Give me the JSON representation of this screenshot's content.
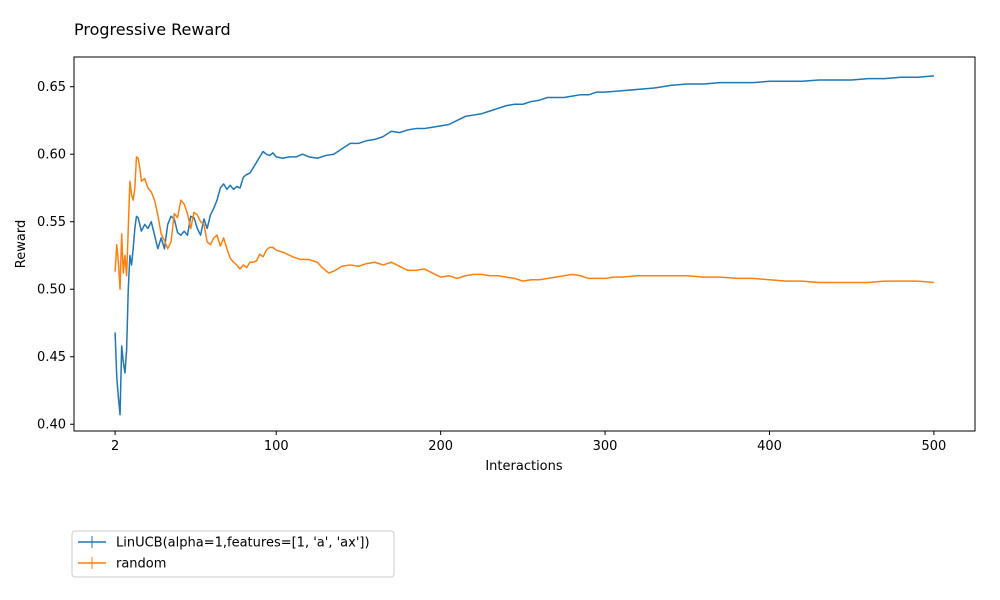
{
  "chart_data": {
    "type": "line",
    "title": "Progressive Reward",
    "xlabel": "Interactions",
    "ylabel": "Reward",
    "xlim": [
      -23,
      525
    ],
    "ylim": [
      0.395,
      0.672
    ],
    "xticks": [
      2,
      100,
      200,
      300,
      400,
      500
    ],
    "yticks": [
      0.4,
      0.45,
      0.5,
      0.55,
      0.6,
      0.65
    ],
    "ytick_labels": [
      "0.40",
      "0.45",
      "0.50",
      "0.55",
      "0.60",
      "0.65"
    ],
    "grid": false,
    "legend_position": "below-left",
    "series": [
      {
        "name": "LinUCB(alpha=1,features=[1, 'a', 'ax'])",
        "color": "#1f77b4",
        "points": [
          [
            2,
            0.468
          ],
          [
            3,
            0.435
          ],
          [
            4,
            0.42
          ],
          [
            5,
            0.407
          ],
          [
            6,
            0.458
          ],
          [
            7,
            0.446
          ],
          [
            8,
            0.438
          ],
          [
            9,
            0.455
          ],
          [
            10,
            0.5
          ],
          [
            11,
            0.525
          ],
          [
            12,
            0.518
          ],
          [
            13,
            0.53
          ],
          [
            14,
            0.545
          ],
          [
            15,
            0.554
          ],
          [
            16,
            0.553
          ],
          [
            18,
            0.543
          ],
          [
            20,
            0.548
          ],
          [
            22,
            0.545
          ],
          [
            24,
            0.55
          ],
          [
            26,
            0.54
          ],
          [
            28,
            0.53
          ],
          [
            30,
            0.538
          ],
          [
            32,
            0.53
          ],
          [
            34,
            0.548
          ],
          [
            36,
            0.554
          ],
          [
            38,
            0.552
          ],
          [
            40,
            0.542
          ],
          [
            42,
            0.54
          ],
          [
            44,
            0.543
          ],
          [
            46,
            0.54
          ],
          [
            48,
            0.554
          ],
          [
            50,
            0.553
          ],
          [
            52,
            0.545
          ],
          [
            54,
            0.54
          ],
          [
            56,
            0.552
          ],
          [
            58,
            0.545
          ],
          [
            60,
            0.555
          ],
          [
            62,
            0.56
          ],
          [
            64,
            0.566
          ],
          [
            66,
            0.575
          ],
          [
            68,
            0.578
          ],
          [
            70,
            0.574
          ],
          [
            72,
            0.577
          ],
          [
            74,
            0.574
          ],
          [
            76,
            0.576
          ],
          [
            78,
            0.575
          ],
          [
            80,
            0.583
          ],
          [
            82,
            0.585
          ],
          [
            84,
            0.586
          ],
          [
            86,
            0.59
          ],
          [
            88,
            0.594
          ],
          [
            90,
            0.598
          ],
          [
            92,
            0.602
          ],
          [
            94,
            0.6
          ],
          [
            96,
            0.599
          ],
          [
            98,
            0.601
          ],
          [
            100,
            0.598
          ],
          [
            104,
            0.597
          ],
          [
            108,
            0.598
          ],
          [
            112,
            0.598
          ],
          [
            116,
            0.6
          ],
          [
            120,
            0.598
          ],
          [
            125,
            0.597
          ],
          [
            130,
            0.599
          ],
          [
            135,
            0.6
          ],
          [
            140,
            0.604
          ],
          [
            145,
            0.608
          ],
          [
            150,
            0.608
          ],
          [
            155,
            0.61
          ],
          [
            160,
            0.611
          ],
          [
            165,
            0.613
          ],
          [
            170,
            0.617
          ],
          [
            175,
            0.616
          ],
          [
            180,
            0.618
          ],
          [
            185,
            0.619
          ],
          [
            190,
            0.619
          ],
          [
            195,
            0.62
          ],
          [
            200,
            0.621
          ],
          [
            205,
            0.622
          ],
          [
            210,
            0.625
          ],
          [
            215,
            0.628
          ],
          [
            220,
            0.629
          ],
          [
            225,
            0.63
          ],
          [
            230,
            0.632
          ],
          [
            235,
            0.634
          ],
          [
            240,
            0.636
          ],
          [
            245,
            0.637
          ],
          [
            250,
            0.637
          ],
          [
            255,
            0.639
          ],
          [
            260,
            0.64
          ],
          [
            265,
            0.642
          ],
          [
            270,
            0.642
          ],
          [
            275,
            0.642
          ],
          [
            280,
            0.643
          ],
          [
            285,
            0.644
          ],
          [
            290,
            0.644
          ],
          [
            295,
            0.646
          ],
          [
            300,
            0.646
          ],
          [
            310,
            0.647
          ],
          [
            320,
            0.648
          ],
          [
            330,
            0.649
          ],
          [
            340,
            0.651
          ],
          [
            350,
            0.652
          ],
          [
            360,
            0.652
          ],
          [
            370,
            0.653
          ],
          [
            380,
            0.653
          ],
          [
            390,
            0.653
          ],
          [
            400,
            0.654
          ],
          [
            410,
            0.654
          ],
          [
            420,
            0.654
          ],
          [
            430,
            0.655
          ],
          [
            440,
            0.655
          ],
          [
            450,
            0.655
          ],
          [
            460,
            0.656
          ],
          [
            470,
            0.656
          ],
          [
            480,
            0.657
          ],
          [
            490,
            0.657
          ],
          [
            500,
            0.658
          ]
        ]
      },
      {
        "name": "random",
        "color": "#ff7f0e",
        "points": [
          [
            2,
            0.513
          ],
          [
            3,
            0.533
          ],
          [
            4,
            0.52
          ],
          [
            5,
            0.5
          ],
          [
            6,
            0.541
          ],
          [
            7,
            0.512
          ],
          [
            8,
            0.525
          ],
          [
            9,
            0.51
          ],
          [
            10,
            0.545
          ],
          [
            11,
            0.58
          ],
          [
            12,
            0.57
          ],
          [
            13,
            0.566
          ],
          [
            14,
            0.575
          ],
          [
            15,
            0.598
          ],
          [
            16,
            0.597
          ],
          [
            17,
            0.59
          ],
          [
            18,
            0.58
          ],
          [
            20,
            0.582
          ],
          [
            22,
            0.575
          ],
          [
            24,
            0.572
          ],
          [
            26,
            0.566
          ],
          [
            28,
            0.555
          ],
          [
            30,
            0.541
          ],
          [
            32,
            0.536
          ],
          [
            34,
            0.53
          ],
          [
            36,
            0.535
          ],
          [
            38,
            0.556
          ],
          [
            40,
            0.553
          ],
          [
            42,
            0.566
          ],
          [
            44,
            0.563
          ],
          [
            46,
            0.556
          ],
          [
            48,
            0.545
          ],
          [
            50,
            0.557
          ],
          [
            52,
            0.555
          ],
          [
            54,
            0.55
          ],
          [
            56,
            0.548
          ],
          [
            58,
            0.535
          ],
          [
            60,
            0.533
          ],
          [
            62,
            0.538
          ],
          [
            64,
            0.54
          ],
          [
            66,
            0.532
          ],
          [
            68,
            0.538
          ],
          [
            70,
            0.53
          ],
          [
            72,
            0.523
          ],
          [
            74,
            0.52
          ],
          [
            76,
            0.518
          ],
          [
            78,
            0.515
          ],
          [
            80,
            0.518
          ],
          [
            82,
            0.516
          ],
          [
            84,
            0.52
          ],
          [
            86,
            0.52
          ],
          [
            88,
            0.521
          ],
          [
            90,
            0.526
          ],
          [
            92,
            0.524
          ],
          [
            94,
            0.529
          ],
          [
            96,
            0.531
          ],
          [
            98,
            0.531
          ],
          [
            100,
            0.529
          ],
          [
            105,
            0.527
          ],
          [
            110,
            0.524
          ],
          [
            115,
            0.522
          ],
          [
            120,
            0.522
          ],
          [
            125,
            0.52
          ],
          [
            128,
            0.516
          ],
          [
            132,
            0.512
          ],
          [
            136,
            0.514
          ],
          [
            140,
            0.517
          ],
          [
            145,
            0.518
          ],
          [
            150,
            0.517
          ],
          [
            155,
            0.519
          ],
          [
            160,
            0.52
          ],
          [
            165,
            0.518
          ],
          [
            170,
            0.52
          ],
          [
            175,
            0.517
          ],
          [
            180,
            0.514
          ],
          [
            185,
            0.514
          ],
          [
            190,
            0.515
          ],
          [
            195,
            0.512
          ],
          [
            200,
            0.509
          ],
          [
            205,
            0.51
          ],
          [
            210,
            0.508
          ],
          [
            215,
            0.51
          ],
          [
            220,
            0.511
          ],
          [
            225,
            0.511
          ],
          [
            230,
            0.51
          ],
          [
            235,
            0.51
          ],
          [
            240,
            0.509
          ],
          [
            245,
            0.508
          ],
          [
            250,
            0.506
          ],
          [
            255,
            0.507
          ],
          [
            260,
            0.507
          ],
          [
            265,
            0.508
          ],
          [
            270,
            0.509
          ],
          [
            275,
            0.51
          ],
          [
            280,
            0.511
          ],
          [
            285,
            0.51
          ],
          [
            290,
            0.508
          ],
          [
            295,
            0.508
          ],
          [
            300,
            0.508
          ],
          [
            305,
            0.509
          ],
          [
            310,
            0.509
          ],
          [
            320,
            0.51
          ],
          [
            330,
            0.51
          ],
          [
            340,
            0.51
          ],
          [
            350,
            0.51
          ],
          [
            360,
            0.509
          ],
          [
            370,
            0.509
          ],
          [
            380,
            0.508
          ],
          [
            390,
            0.508
          ],
          [
            400,
            0.507
          ],
          [
            410,
            0.506
          ],
          [
            420,
            0.506
          ],
          [
            430,
            0.505
          ],
          [
            440,
            0.505
          ],
          [
            450,
            0.505
          ],
          [
            460,
            0.505
          ],
          [
            470,
            0.506
          ],
          [
            480,
            0.506
          ],
          [
            490,
            0.506
          ],
          [
            500,
            0.505
          ]
        ]
      }
    ]
  }
}
